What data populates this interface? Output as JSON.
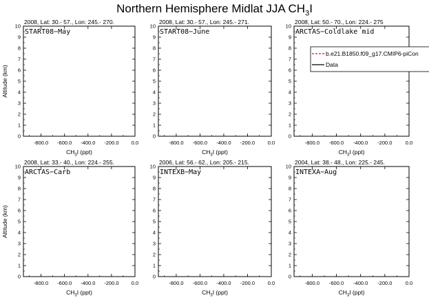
{
  "figure": {
    "title_main": "Northern Hemisphere Midlat JJA CH",
    "title_sub": "3",
    "title_tail": "I"
  },
  "chart_data": [
    {
      "type": "line",
      "header": "2008, Lat:  30.- 57., Lon: 245.- 270.",
      "label": "START08−May",
      "xlabel_main": "CH",
      "xlabel_sub": "3",
      "xlabel_tail": "I (ppt)",
      "ylabel": "Altitude (km)",
      "xlim": [
        -950,
        0
      ],
      "ylim": [
        0,
        10
      ],
      "xticks": [
        {
          "v": -800,
          "l": "-800.0"
        },
        {
          "v": -600,
          "l": "-600.0"
        },
        {
          "v": -400,
          "l": "-400.0"
        },
        {
          "v": -200,
          "l": "-200.0"
        },
        {
          "v": 0,
          "l": "0.0"
        }
      ],
      "yticks": [
        0,
        1,
        2,
        3,
        4,
        5,
        6,
        7,
        8,
        9,
        10
      ],
      "series": []
    },
    {
      "type": "line",
      "header": "2008, Lat:  30.- 57., Lon: 245.- 271.",
      "label": "START08−June",
      "xlabel_main": "CH",
      "xlabel_sub": "3",
      "xlabel_tail": "I (ppt)",
      "ylabel": "",
      "xlim": [
        -950,
        0
      ],
      "ylim": [
        0,
        10
      ],
      "xticks": [
        {
          "v": -800,
          "l": "-800.0"
        },
        {
          "v": -600,
          "l": "-600.0"
        },
        {
          "v": -400,
          "l": "-400.0"
        },
        {
          "v": -200,
          "l": "-200.0"
        },
        {
          "v": 0,
          "l": "0.0"
        }
      ],
      "yticks": [
        0,
        1,
        2,
        3,
        4,
        5,
        6,
        7,
        8,
        9,
        10
      ],
      "series": []
    },
    {
      "type": "line",
      "header": "2008, Lat:  50.- 70., Lon: 224.- 275",
      "label": "ARCTAS−Coldlake mid",
      "xlabel_main": "CH",
      "xlabel_sub": "3",
      "xlabel_tail": "I (ppt)",
      "ylabel": "",
      "xlim": [
        -950,
        0
      ],
      "ylim": [
        0,
        10
      ],
      "xticks": [
        {
          "v": -800,
          "l": "-800.0"
        },
        {
          "v": -600,
          "l": "-600.0"
        },
        {
          "v": -400,
          "l": "-400.0"
        },
        {
          "v": -200,
          "l": "-200.0"
        },
        {
          "v": 0,
          "l": "0.0"
        }
      ],
      "yticks": [
        0,
        1,
        2,
        3,
        4,
        5,
        6,
        7,
        8,
        9,
        10
      ],
      "series": [],
      "legend": {
        "placement": "top-right",
        "entries": [
          {
            "name": "b.e21.B1850.f09_g17.CMIP6-piCon",
            "color": "#ff0000",
            "dash": "dashed"
          },
          {
            "name": "Data",
            "color": "#000000",
            "dash": "solid"
          }
        ]
      }
    },
    {
      "type": "line",
      "header": "2008, Lat:  33.- 40., Lon: 224.- 255.",
      "label": "ARCTAS−Carb",
      "xlabel_main": "CH",
      "xlabel_sub": "3",
      "xlabel_tail": "I (ppt)",
      "ylabel": "Altitude (km)",
      "xlim": [
        -950,
        0
      ],
      "ylim": [
        0,
        10
      ],
      "xticks": [
        {
          "v": -800,
          "l": "-800.0"
        },
        {
          "v": -600,
          "l": "-600.0"
        },
        {
          "v": -400,
          "l": "-400.0"
        },
        {
          "v": -200,
          "l": "-200.0"
        },
        {
          "v": 0,
          "l": "0.0"
        }
      ],
      "yticks": [
        0,
        1,
        2,
        3,
        4,
        5,
        6,
        7,
        8,
        9,
        10
      ],
      "series": []
    },
    {
      "type": "line",
      "header": "2006, Lat:  56.- 62., Lon: 205.- 215.",
      "label": "INTEXB−May",
      "xlabel_main": "CH",
      "xlabel_sub": "3",
      "xlabel_tail": "I (ppt)",
      "ylabel": "",
      "xlim": [
        -950,
        0
      ],
      "ylim": [
        0,
        10
      ],
      "xticks": [
        {
          "v": -800,
          "l": "-800.0"
        },
        {
          "v": -600,
          "l": "-600.0"
        },
        {
          "v": -400,
          "l": "-400.0"
        },
        {
          "v": -200,
          "l": "-200.0"
        },
        {
          "v": 0,
          "l": "0.0"
        }
      ],
      "yticks": [
        0,
        1,
        2,
        3,
        4,
        5,
        6,
        7,
        8,
        9,
        10
      ],
      "series": []
    },
    {
      "type": "line",
      "header": "2004, Lat:  38.- 48., Lon: 225.- 245.",
      "label": "INTEXA−Aug",
      "xlabel_main": "CH",
      "xlabel_sub": "3",
      "xlabel_tail": "I (ppt)",
      "ylabel": "",
      "xlim": [
        -950,
        0
      ],
      "ylim": [
        0,
        10
      ],
      "xticks": [
        {
          "v": -800,
          "l": "-800.0"
        },
        {
          "v": -600,
          "l": "-600.0"
        },
        {
          "v": -400,
          "l": "-400.0"
        },
        {
          "v": -200,
          "l": "-200.0"
        },
        {
          "v": 0,
          "l": "0.0"
        }
      ],
      "yticks": [
        0,
        1,
        2,
        3,
        4,
        5,
        6,
        7,
        8,
        9,
        10
      ],
      "series": []
    }
  ]
}
